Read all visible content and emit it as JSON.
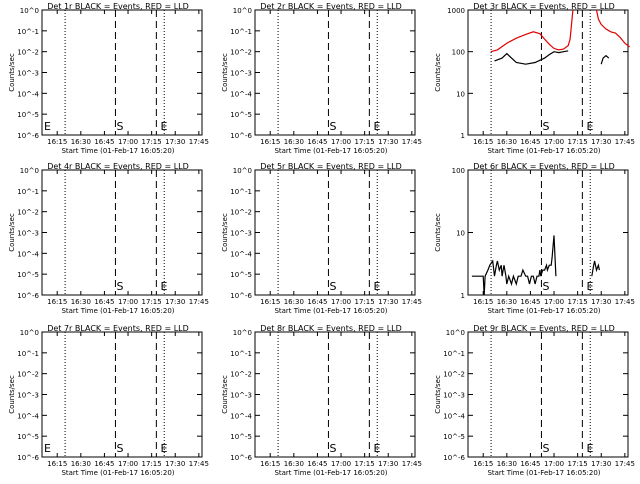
{
  "chart_data": [
    {
      "type": "line",
      "title": "Det 1r BLACK = Events, RED = LLD",
      "xlabel": "Start Time (01-Feb-17 16:05:20)",
      "ylabel": "Counts/sec",
      "x_tick_labels": [
        "16:15",
        "16:30",
        "16:45",
        "17:00",
        "17:15",
        "17:30",
        "17:45"
      ],
      "y_tick_labels": [
        "10^0",
        "10^-1",
        "10^-2",
        "10^-3",
        "10^-4",
        "10^-5",
        "10^-6"
      ],
      "y_scale": "log",
      "ylim": [
        1e-06,
        1
      ],
      "xlim": [
        "16:05:20",
        "17:47:00"
      ],
      "dotted_lines": [
        "16:20",
        "17:23"
      ],
      "dashed_lines": [
        "16:52",
        "17:18"
      ],
      "markers": [
        {
          "text": "E",
          "x": "16:06"
        },
        {
          "text": "S",
          "x": "16:52"
        },
        {
          "text": "E",
          "x": "17:20"
        }
      ],
      "series": []
    },
    {
      "type": "line",
      "title": "Det 2r BLACK = Events, RED = LLD",
      "xlabel": "Start Time (01-Feb-17 16:05:20)",
      "ylabel": "Counts/sec",
      "x_tick_labels": [
        "16:15",
        "16:30",
        "16:45",
        "17:00",
        "17:15",
        "17:30",
        "17:45"
      ],
      "y_tick_labels": [
        "10^0",
        "10^-1",
        "10^-2",
        "10^-3",
        "10^-4",
        "10^-5",
        "10^-6"
      ],
      "y_scale": "log",
      "ylim": [
        1e-06,
        1
      ],
      "xlim": [
        "16:05:20",
        "17:47:00"
      ],
      "dotted_lines": [
        "16:20",
        "17:23"
      ],
      "dashed_lines": [
        "16:52",
        "17:18"
      ],
      "markers": [
        {
          "text": "S",
          "x": "16:52"
        },
        {
          "text": "E",
          "x": "17:20"
        }
      ],
      "series": []
    },
    {
      "type": "line",
      "title": "Det 3r BLACK = Events, RED = LLD",
      "xlabel": "Start Time (01-Feb-17 16:05:20)",
      "ylabel": "Counts/sec",
      "x_tick_labels": [
        "16:15",
        "16:30",
        "16:45",
        "17:00",
        "17:15",
        "17:30",
        "17:45"
      ],
      "y_tick_labels": [
        "1000",
        "100",
        "10",
        "1"
      ],
      "y_scale": "log",
      "ylim": [
        1,
        1000
      ],
      "xlim": [
        "16:05:20",
        "17:47:00"
      ],
      "dotted_lines": [
        "16:20",
        "17:23"
      ],
      "dashed_lines": [
        "16:52",
        "17:18"
      ],
      "markers": [
        {
          "text": "S",
          "x": "16:52"
        },
        {
          "text": "E",
          "x": "17:20"
        }
      ],
      "series": [
        {
          "color": "#e00000",
          "segments": [
            [
              [
                16.33,
                100
              ],
              [
                16.4,
                110
              ],
              [
                16.5,
                160
              ],
              [
                16.6,
                210
              ],
              [
                16.7,
                260
              ],
              [
                16.78,
                300
              ],
              [
                16.85,
                270
              ],
              [
                16.9,
                200
              ],
              [
                16.95,
                150
              ],
              [
                17.0,
                120
              ],
              [
                17.05,
                110
              ],
              [
                17.1,
                115
              ],
              [
                17.15,
                140
              ],
              [
                17.17,
                200
              ],
              [
                17.2,
                1000
              ]
            ],
            [
              [
                17.45,
                1000
              ],
              [
                17.47,
                600
              ],
              [
                17.5,
                450
              ],
              [
                17.55,
                350
              ],
              [
                17.6,
                300
              ],
              [
                17.65,
                280
              ],
              [
                17.7,
                220
              ],
              [
                17.75,
                160
              ],
              [
                17.8,
                130
              ]
            ]
          ]
        },
        {
          "color": "#000000",
          "segments": [
            [
              [
                16.37,
                60
              ],
              [
                16.45,
                70
              ],
              [
                16.5,
                90
              ],
              [
                16.55,
                70
              ],
              [
                16.6,
                55
              ],
              [
                16.7,
                50
              ],
              [
                16.8,
                55
              ],
              [
                16.9,
                70
              ],
              [
                16.95,
                85
              ],
              [
                17.0,
                100
              ],
              [
                17.05,
                95
              ],
              [
                17.1,
                100
              ],
              [
                17.15,
                105
              ]
            ],
            [
              [
                17.5,
                50
              ],
              [
                17.52,
                70
              ],
              [
                17.55,
                80
              ],
              [
                17.58,
                70
              ]
            ]
          ]
        }
      ]
    },
    {
      "type": "line",
      "title": "Det 4r BLACK = Events, RED = LLD",
      "xlabel": "Start Time (01-Feb-17 16:05:20)",
      "ylabel": "Counts/sec",
      "x_tick_labels": [
        "16:15",
        "16:30",
        "16:45",
        "17:00",
        "17:15",
        "17:30",
        "17:45"
      ],
      "y_tick_labels": [
        "10^0",
        "10^-1",
        "10^-2",
        "10^-3",
        "10^-4",
        "10^-5",
        "10^-6"
      ],
      "y_scale": "log",
      "ylim": [
        1e-06,
        1
      ],
      "xlim": [
        "16:05:20",
        "17:47:00"
      ],
      "dotted_lines": [
        "16:20",
        "17:23"
      ],
      "dashed_lines": [
        "16:52",
        "17:18"
      ],
      "markers": [
        {
          "text": "S",
          "x": "16:52"
        },
        {
          "text": "E",
          "x": "17:20"
        }
      ],
      "series": []
    },
    {
      "type": "line",
      "title": "Det 5r BLACK = Events, RED = LLD",
      "xlabel": "Start Time (01-Feb-17 16:05:20)",
      "ylabel": "Counts/sec",
      "x_tick_labels": [
        "16:15",
        "16:30",
        "16:45",
        "17:00",
        "17:15",
        "17:30",
        "17:45"
      ],
      "y_tick_labels": [
        "10^0",
        "10^-1",
        "10^-2",
        "10^-3",
        "10^-4",
        "10^-5",
        "10^-6"
      ],
      "y_scale": "log",
      "ylim": [
        1e-06,
        1
      ],
      "xlim": [
        "16:05:20",
        "17:47:00"
      ],
      "dotted_lines": [
        "16:20",
        "17:23"
      ],
      "dashed_lines": [
        "16:52",
        "17:18"
      ],
      "markers": [
        {
          "text": "S",
          "x": "16:52"
        },
        {
          "text": "E",
          "x": "17:20"
        }
      ],
      "series": []
    },
    {
      "type": "line",
      "title": "Det 6r BLACK = Events, RED = LLD",
      "xlabel": "Start Time (01-Feb-17 16:05:20)",
      "ylabel": "Counts/sec",
      "x_tick_labels": [
        "16:15",
        "16:30",
        "16:45",
        "17:00",
        "17:15",
        "17:30",
        "17:45"
      ],
      "y_tick_labels": [
        "100",
        "10",
        "1"
      ],
      "y_scale": "log",
      "ylim": [
        1,
        100
      ],
      "xlim": [
        "16:05:20",
        "17:47:00"
      ],
      "dotted_lines": [
        "16:20",
        "17:23"
      ],
      "dashed_lines": [
        "16:52",
        "17:18"
      ],
      "markers": [
        {
          "text": "S",
          "x": "16:52"
        },
        {
          "text": "E",
          "x": "17:20"
        }
      ],
      "series": [
        {
          "color": "#000000",
          "segments": [
            [
              [
                16.13,
                2
              ],
              [
                16.2,
                2
              ],
              [
                16.25,
                2
              ],
              [
                16.26,
                1
              ],
              [
                16.27,
                2
              ],
              [
                16.3,
                2.5
              ],
              [
                16.32,
                3
              ],
              [
                16.35,
                3.5
              ],
              [
                16.37,
                2
              ],
              [
                16.39,
                3
              ],
              [
                16.4,
                3.5
              ],
              [
                16.42,
                2.5
              ],
              [
                16.44,
                3
              ],
              [
                16.45,
                2
              ],
              [
                16.47,
                3
              ],
              [
                16.49,
                2
              ],
              [
                16.5,
                1.5
              ],
              [
                16.52,
                2
              ],
              [
                16.55,
                1.5
              ],
              [
                16.57,
                2
              ],
              [
                16.6,
                1.5
              ],
              [
                16.62,
                2
              ],
              [
                16.65,
                2
              ],
              [
                16.67,
                2.5
              ],
              [
                16.7,
                2
              ],
              [
                16.72,
                2
              ],
              [
                16.74,
                1.5
              ],
              [
                16.76,
                2
              ],
              [
                16.78,
                2
              ],
              [
                16.8,
                1.5
              ],
              [
                16.82,
                2
              ],
              [
                16.84,
                2
              ],
              [
                16.85,
                2.5
              ],
              [
                16.86,
                2
              ],
              [
                16.88,
                2.5
              ],
              [
                16.9,
                2.5
              ],
              [
                16.92,
                3
              ],
              [
                16.93,
                2.5
              ],
              [
                16.95,
                3
              ],
              [
                16.97,
                3
              ],
              [
                16.98,
                4
              ],
              [
                17.0,
                9
              ],
              [
                17.02,
                2
              ]
            ],
            [
              [
                17.4,
                2
              ],
              [
                17.42,
                3
              ],
              [
                17.43,
                3.5
              ],
              [
                17.45,
                2.5
              ],
              [
                17.47,
                3
              ],
              [
                17.48,
                2.5
              ]
            ]
          ]
        }
      ]
    },
    {
      "type": "line",
      "title": "Det 7r BLACK = Events, RED = LLD",
      "xlabel": "Start Time (01-Feb-17 16:05:20)",
      "ylabel": "Counts/sec",
      "x_tick_labels": [
        "16:15",
        "16:30",
        "16:45",
        "17:00",
        "17:15",
        "17:30",
        "17:45"
      ],
      "y_tick_labels": [
        "10^0",
        "10^-1",
        "10^-2",
        "10^-3",
        "10^-4",
        "10^-5",
        "10^-6"
      ],
      "y_scale": "log",
      "ylim": [
        1e-06,
        1
      ],
      "xlim": [
        "16:05:20",
        "17:47:00"
      ],
      "dotted_lines": [
        "16:20",
        "17:23"
      ],
      "dashed_lines": [
        "16:52",
        "17:18"
      ],
      "markers": [
        {
          "text": "E",
          "x": "16:06"
        },
        {
          "text": "S",
          "x": "16:52"
        },
        {
          "text": "E",
          "x": "17:20"
        }
      ],
      "series": []
    },
    {
      "type": "line",
      "title": "Det 8r BLACK = Events, RED = LLD",
      "xlabel": "Start Time (01-Feb-17 16:05:20)",
      "ylabel": "Counts/sec",
      "x_tick_labels": [
        "16:15",
        "16:30",
        "16:45",
        "17:00",
        "17:15",
        "17:30",
        "17:45"
      ],
      "y_tick_labels": [
        "10^0",
        "10^-1",
        "10^-2",
        "10^-3",
        "10^-4",
        "10^-5",
        "10^-6"
      ],
      "y_scale": "log",
      "ylim": [
        1e-06,
        1
      ],
      "xlim": [
        "16:05:20",
        "17:47:00"
      ],
      "dotted_lines": [
        "16:20",
        "17:23"
      ],
      "dashed_lines": [
        "16:52",
        "17:18"
      ],
      "markers": [
        {
          "text": "S",
          "x": "16:52"
        },
        {
          "text": "E",
          "x": "17:20"
        }
      ],
      "series": []
    },
    {
      "type": "line",
      "title": "Det 9r BLACK = Events, RED = LLD",
      "xlabel": "Start Time (01-Feb-17 16:05:20)",
      "ylabel": "Counts/sec",
      "x_tick_labels": [
        "16:15",
        "16:30",
        "16:45",
        "17:00",
        "17:15",
        "17:30",
        "17:45"
      ],
      "y_tick_labels": [
        "10^0",
        "10^-1",
        "10^-2",
        "10^-3",
        "10^-4",
        "10^-5",
        "10^-6"
      ],
      "y_scale": "log",
      "ylim": [
        1e-06,
        1
      ],
      "xlim": [
        "16:05:20",
        "17:47:00"
      ],
      "dotted_lines": [
        "16:20",
        "17:23"
      ],
      "dashed_lines": [
        "16:52",
        "17:18"
      ],
      "markers": [
        {
          "text": "S",
          "x": "16:52"
        },
        {
          "text": "E",
          "x": "17:20"
        }
      ],
      "series": []
    }
  ]
}
